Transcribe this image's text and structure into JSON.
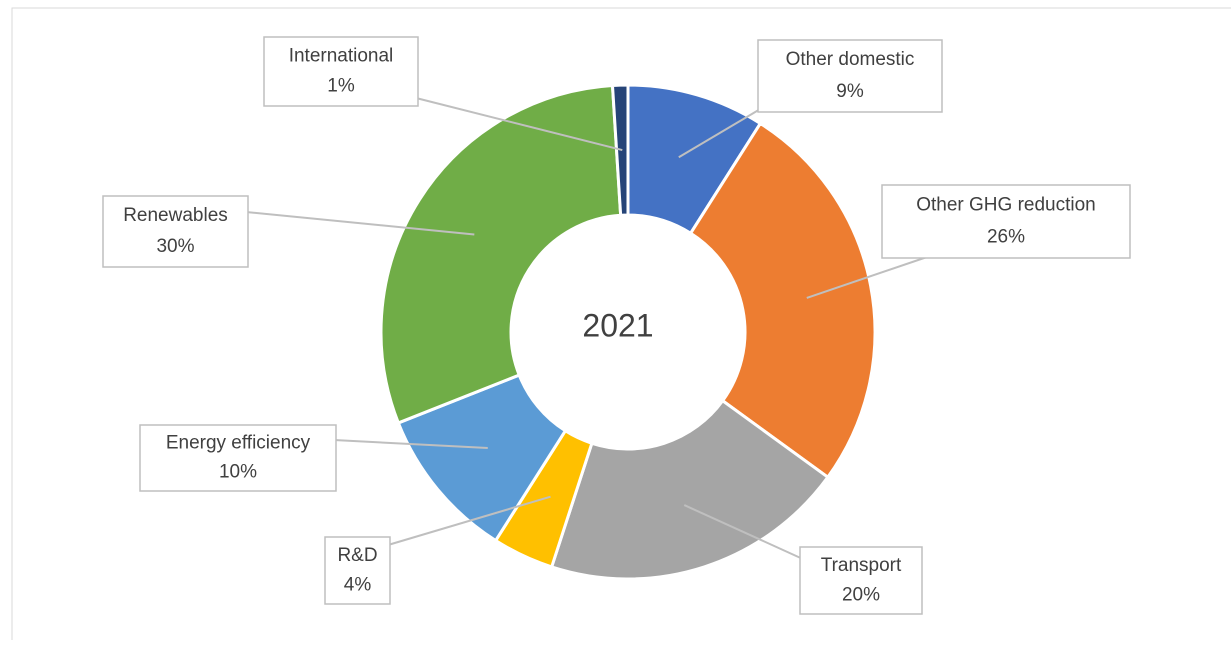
{
  "chart_data": {
    "type": "donut",
    "title": "2021",
    "categories": [
      "Other domestic",
      "Other GHG reduction",
      "Transport",
      "R&D",
      "Energy efficiency",
      "Renewables",
      "International"
    ],
    "values": [
      9,
      26,
      20,
      4,
      10,
      30,
      1
    ],
    "value_labels": [
      "9%",
      "26%",
      "20%",
      "4%",
      "10%",
      "30%",
      "1%"
    ],
    "colors": [
      "#4472c4",
      "#ed7d31",
      "#a5a5a5",
      "#ffc000",
      "#5b9bd5",
      "#70ad47",
      "#264478"
    ]
  }
}
